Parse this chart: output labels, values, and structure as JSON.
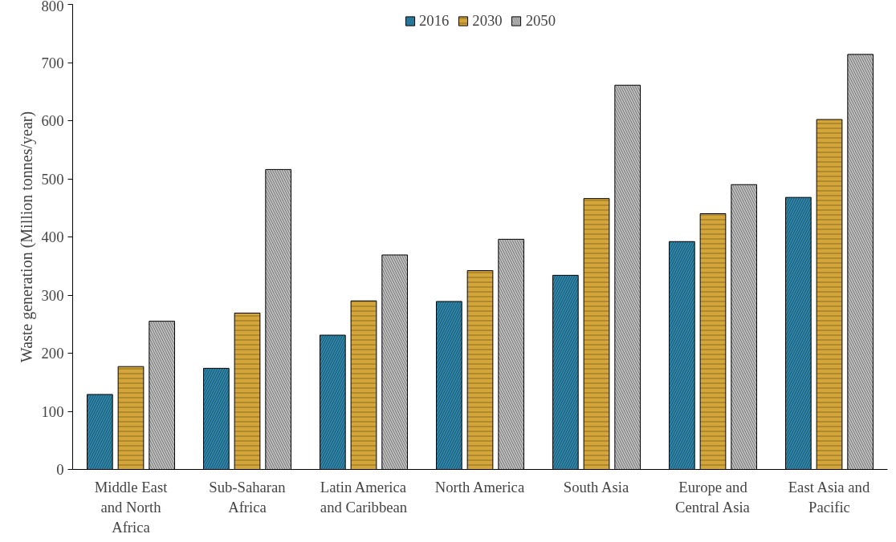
{
  "chart_data": {
    "type": "bar",
    "ylabel": "Waste generation (Million tonnes/year)",
    "categories": [
      "Middle East and North Africa",
      "Sub-Saharan Africa",
      "Latin America and Caribbean",
      "North America",
      "South Asia",
      "Europe and Central Asia",
      "East Asia and Pacific"
    ],
    "series": [
      {
        "name": "2016",
        "color": "#2e86ab",
        "values": [
          129,
          174,
          231,
          289,
          334,
          392,
          468
        ]
      },
      {
        "name": "2030",
        "color": "#d4a63a",
        "values": [
          177,
          269,
          290,
          342,
          466,
          440,
          602
        ]
      },
      {
        "name": "2050",
        "color": "#bdbdbd",
        "values": [
          255,
          516,
          369,
          396,
          661,
          490,
          714
        ]
      }
    ],
    "ylim": [
      0,
      800
    ],
    "yticks": [
      0,
      100,
      200,
      300,
      400,
      500,
      600,
      700,
      800
    ],
    "grid": false,
    "legend": "top"
  }
}
